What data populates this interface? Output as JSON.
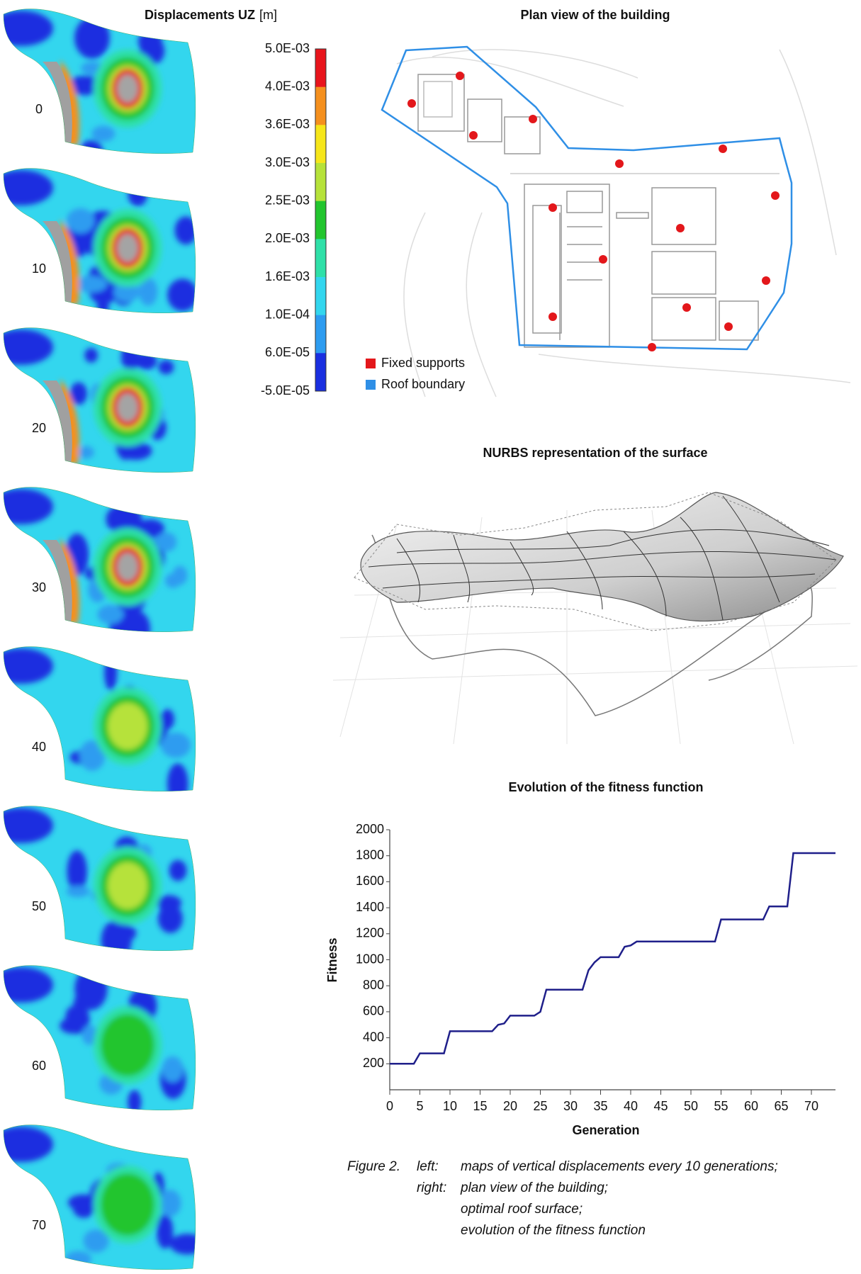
{
  "displacement_maps": {
    "title": "Displacements UZ",
    "unit": "[m]",
    "generations": [
      "0",
      "10",
      "20",
      "30",
      "40",
      "50",
      "60",
      "70"
    ],
    "colorbar": {
      "labels": [
        "5.0E-03",
        "4.0E-03",
        "3.6E-03",
        "3.0E-03",
        "2.5E-03",
        "2.0E-03",
        "1.6E-03",
        "1.0E-04",
        "6.0E-05",
        "-5.0E-05"
      ],
      "colors": [
        "#e8141c",
        "#f5901e",
        "#f6e61a",
        "#b6e23a",
        "#22c52e",
        "#2fe0a8",
        "#33d6ee",
        "#2d9cf0",
        "#1a2fe0"
      ]
    }
  },
  "plan_view": {
    "title": "Plan view of the building",
    "legend": [
      {
        "name": "Fixed supports",
        "color": "#e3171b"
      },
      {
        "name": "Roof boundary",
        "color": "#2f8fe6"
      }
    ]
  },
  "nurbs": {
    "title": "NURBS representation of the surface"
  },
  "chart_data": {
    "type": "line",
    "title": "Evolution of the fitness function",
    "x_label": "Generation",
    "y_label": "Fitness",
    "x": [
      0,
      1,
      2,
      3,
      4,
      5,
      6,
      7,
      8,
      9,
      10,
      11,
      12,
      13,
      14,
      15,
      16,
      17,
      18,
      19,
      20,
      21,
      22,
      23,
      24,
      25,
      26,
      27,
      28,
      29,
      30,
      31,
      32,
      33,
      34,
      35,
      36,
      37,
      38,
      39,
      40,
      41,
      42,
      43,
      44,
      45,
      46,
      47,
      48,
      49,
      50,
      51,
      52,
      53,
      54,
      55,
      56,
      57,
      58,
      59,
      60,
      61,
      62,
      63,
      64,
      65,
      66,
      67,
      68,
      69,
      70,
      71,
      72,
      73,
      74
    ],
    "series": [
      {
        "name": "Fitness",
        "color": "#1f1f8a",
        "values": [
          200,
          200,
          200,
          200,
          200,
          280,
          280,
          280,
          280,
          280,
          450,
          450,
          450,
          450,
          450,
          450,
          450,
          450,
          500,
          510,
          570,
          570,
          570,
          570,
          570,
          600,
          770,
          770,
          770,
          770,
          770,
          770,
          770,
          920,
          980,
          1020,
          1020,
          1020,
          1020,
          1100,
          1110,
          1140,
          1140,
          1140,
          1140,
          1140,
          1140,
          1140,
          1140,
          1140,
          1140,
          1140,
          1140,
          1140,
          1140,
          1310,
          1310,
          1310,
          1310,
          1310,
          1310,
          1310,
          1310,
          1410,
          1410,
          1410,
          1410,
          1820,
          1820,
          1820,
          1820,
          1820,
          1820,
          1820,
          1820
        ]
      }
    ],
    "xlim": [
      0,
      74
    ],
    "ylim": [
      0,
      2000
    ],
    "xticks": [
      0,
      5,
      10,
      15,
      20,
      25,
      30,
      35,
      40,
      45,
      50,
      55,
      60,
      65,
      70
    ],
    "yticks": [
      200,
      400,
      600,
      800,
      1000,
      1200,
      1400,
      1600,
      1800,
      2000
    ]
  },
  "caption": {
    "figure": "Figure 2.",
    "lines": [
      {
        "label": "left:",
        "text": "maps of vertical displacements every 10 generations;"
      },
      {
        "label": "right:",
        "text": "plan view of the building;"
      },
      {
        "text": "optimal roof surface;"
      },
      {
        "text": "evolution of the fitness function"
      }
    ]
  }
}
